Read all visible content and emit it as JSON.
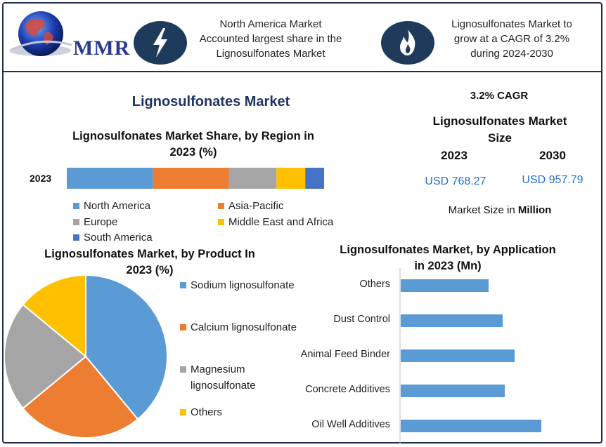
{
  "header": {
    "logo_text": "MMR",
    "highlight_1": [
      "North America Market",
      "Accounted largest share in the",
      "Lignosulfonates Market"
    ],
    "highlight_2": [
      "Lignosulfonates Market to",
      "grow at a CAGR of 3.2%",
      "during 2024-2030"
    ],
    "icon_1": "lightning-icon",
    "icon_2": "flame-icon"
  },
  "main_title": "Lignosulfonates Market",
  "market_size": {
    "cagr": "3.2% CAGR",
    "title_line1": "Lignosulfonates Market",
    "title_line2": "Size",
    "year_start": "2023",
    "year_end": "2030",
    "value_start": "USD 768.27",
    "value_end": "USD 957.79",
    "unit_prefix": "Market Size in ",
    "unit_bold": "Million"
  },
  "colors": {
    "blue": "#5b9bd5",
    "orange": "#ed7d31",
    "gray": "#a5a5a5",
    "yellow": "#ffc000",
    "dark_blue": "#4472c4",
    "navy": "#1f3b5c"
  },
  "chart_data": [
    {
      "type": "bar",
      "orientation": "horizontal-stacked",
      "title_line1": "Lignosulfonates Market Share, by Region in",
      "title_line2": "2023 (%)",
      "categories": [
        "2023"
      ],
      "series": [
        {
          "name": "North America",
          "values": [
            33.5
          ],
          "color": "#5b9bd5"
        },
        {
          "name": "Asia-Pacific",
          "values": [
            29.5
          ],
          "color": "#ed7d31"
        },
        {
          "name": "Europe",
          "values": [
            18.5
          ],
          "color": "#a5a5a5"
        },
        {
          "name": "Middle East and Africa",
          "values": [
            11.2
          ],
          "color": "#ffc000"
        },
        {
          "name": "South America",
          "values": [
            7.3
          ],
          "color": "#4472c4"
        }
      ],
      "legend": "bottom"
    },
    {
      "type": "pie",
      "title_line1": "Lignosulfonates Market, by Product In",
      "title_line2": "2023 (%)",
      "slices": [
        {
          "name": "Sodium lignosulfonate",
          "value": 39,
          "color": "#5b9bd5"
        },
        {
          "name": "Calcium lignosulfonate",
          "value": 25,
          "color": "#ed7d31"
        },
        {
          "name": "Magnesium lignosulfonate",
          "value": 22,
          "color": "#a5a5a5"
        },
        {
          "name": "Others",
          "value": 14,
          "color": "#ffc000"
        }
      ],
      "legend_labels": [
        "Sodium lignosulfonate",
        "Calcium lignosulfonate",
        "Magnesium",
        "lignosulfonate",
        "Others"
      ],
      "legend": "right"
    },
    {
      "type": "bar",
      "orientation": "horizontal",
      "title_line1": "Lignosulfonates Market, by Application",
      "title_line2": "in 2023 (Mn)",
      "categories": [
        "Others",
        "Dust Control",
        "Animal Feed Binder",
        "Concrete Additives",
        "Oil Well Additives"
      ],
      "values": [
        125,
        145,
        162,
        148,
        200
      ],
      "xlim": [
        0,
        280
      ],
      "color": "#5b9bd5"
    }
  ]
}
